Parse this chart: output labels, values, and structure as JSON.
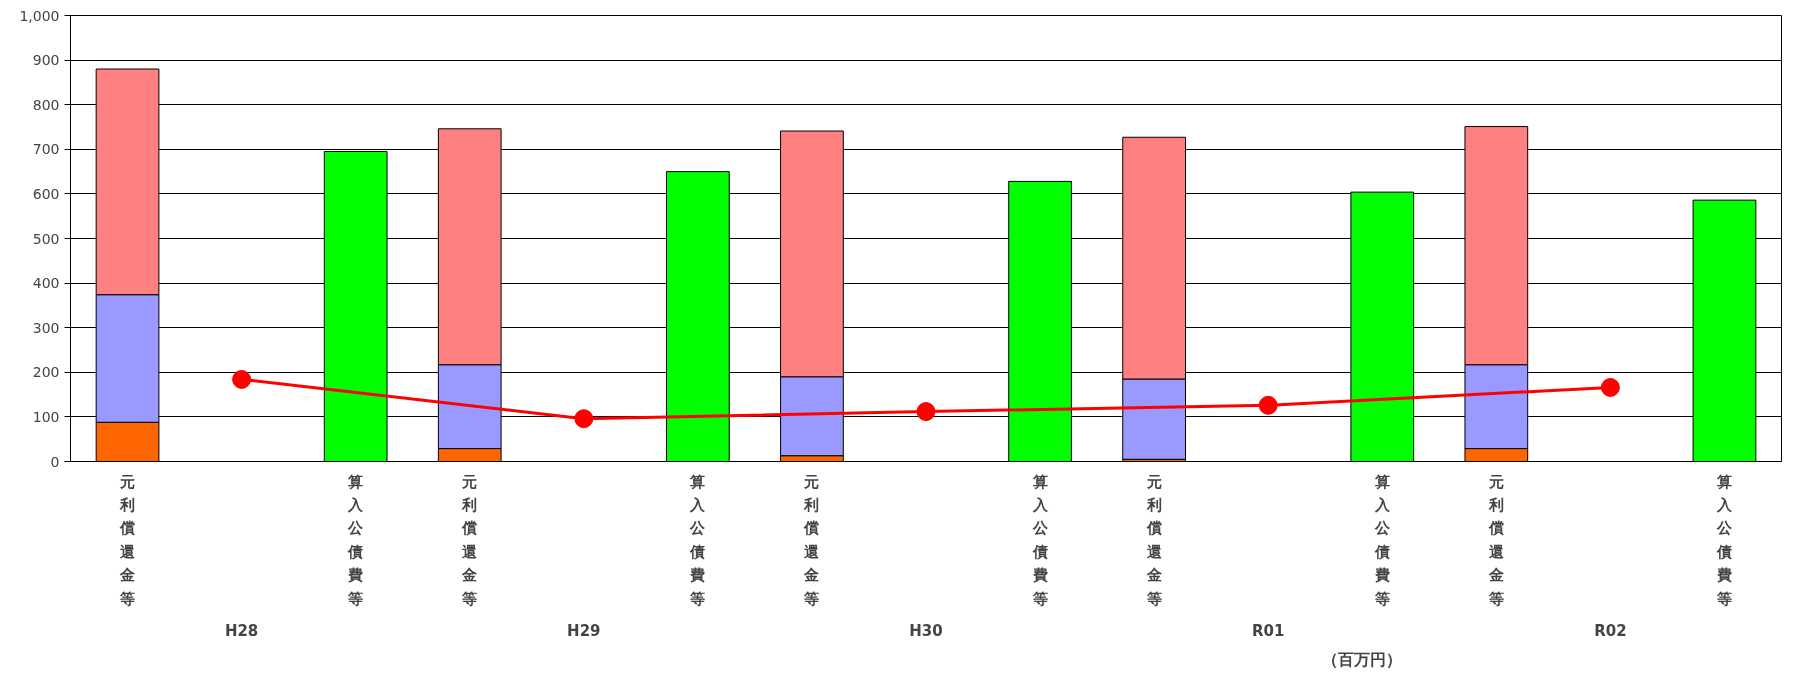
{
  "chart_data": {
    "type": "bar",
    "stacked": true,
    "categories": [
      "元利償還金等",
      null,
      "算入公債費等",
      "元利償還金等",
      null,
      "算入公債費等",
      "元利償還金等",
      null,
      "算入公債費等",
      "元利償還金等",
      null,
      "算入公債費等",
      "元利償還金等",
      null,
      "算入公債費等"
    ],
    "series": [
      {
        "color": "#ff6600",
        "values": [
          88,
          null,
          null,
          29,
          null,
          null,
          13,
          null,
          null,
          5,
          null,
          null,
          29,
          null,
          null
        ]
      },
      {
        "color": "#9999ff",
        "values": [
          286,
          null,
          null,
          188,
          null,
          null,
          177,
          null,
          null,
          180,
          null,
          null,
          188,
          null,
          null
        ]
      },
      {
        "color": "#ff8080",
        "values": [
          506,
          null,
          null,
          529,
          null,
          null,
          551,
          null,
          null,
          542,
          null,
          null,
          534,
          null,
          null
        ]
      },
      {
        "color": "#00ff00",
        "values": [
          null,
          null,
          695,
          null,
          null,
          650,
          null,
          null,
          628,
          null,
          null,
          604,
          null,
          null,
          586
        ]
      },
      {
        "type": "line",
        "color": "#ff0000",
        "marker": "circle",
        "values": [
          null,
          184,
          null,
          null,
          96,
          null,
          null,
          112,
          null,
          null,
          126,
          null,
          null,
          166,
          null
        ]
      }
    ],
    "ylim": [
      0,
      1000
    ],
    "yticks": [
      0,
      100,
      200,
      300,
      400,
      500,
      600,
      700,
      800,
      900,
      {
        "value": 1000,
        "label": "1,000"
      }
    ],
    "grid": "y",
    "annotations": [
      "H28",
      "H29",
      "H30",
      "R01",
      "R02",
      "（百万円）"
    ]
  }
}
